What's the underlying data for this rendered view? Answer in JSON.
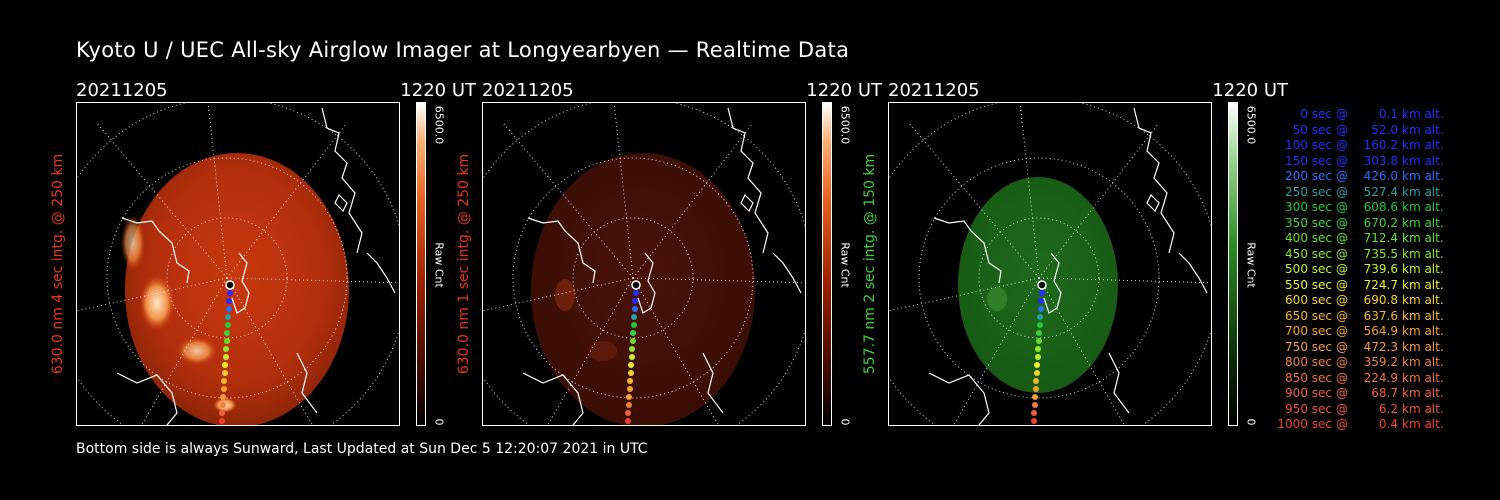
{
  "header": {
    "title": "Kyoto U / UEC All-sky Airglow Imager at Longyearbyen — Realtime Data"
  },
  "footer": {
    "text": "Bottom side is always Sunward, Last Updated at Sun Dec  5 12:20:07 2021 in UTC"
  },
  "colors": {
    "red_channel": "#d83a18",
    "green_channel": "#3bd13b",
    "background": "#000000"
  },
  "panels": [
    {
      "date": "20211205",
      "time": "1220 UT",
      "ylabel": "630.0 nm 4 sec intg. @ 250 km",
      "label_color": "#e8331c",
      "cbar_max": "6500.0",
      "cbar_min": "0",
      "cbar_unit": "Raw Cnt",
      "image_brightness": "bright red"
    },
    {
      "date": "20211205",
      "time": "1220 UT",
      "ylabel": "630.0 nm 1 sec intg. @ 250 km",
      "label_color": "#e8331c",
      "cbar_max": "6500.0",
      "cbar_min": "0",
      "cbar_unit": "Raw Cnt",
      "image_brightness": "dim red"
    },
    {
      "date": "20211205",
      "time": "1220 UT",
      "ylabel": "557.7 nm 2 sec intg. @ 150 km",
      "label_color": "#3bd13b",
      "cbar_max": "6500.0",
      "cbar_min": "0",
      "cbar_unit": "Raw Cnt",
      "image_brightness": "green"
    }
  ],
  "legend": [
    {
      "time": "0 sec",
      "alt": "0.1",
      "unit": "km alt.",
      "color": "#2a2aff"
    },
    {
      "time": "50 sec",
      "alt": "52.0",
      "unit": "km alt.",
      "color": "#2a2aff"
    },
    {
      "time": "100 sec",
      "alt": "160.2",
      "unit": "km alt.",
      "color": "#2a2aff"
    },
    {
      "time": "150 sec",
      "alt": "303.8",
      "unit": "km alt.",
      "color": "#2a2aff"
    },
    {
      "time": "200 sec",
      "alt": "426.0",
      "unit": "km alt.",
      "color": "#2a6cff"
    },
    {
      "time": "250 sec",
      "alt": "527.4",
      "unit": "km alt.",
      "color": "#27a0a0"
    },
    {
      "time": "300 sec",
      "alt": "608.6",
      "unit": "km alt.",
      "color": "#1fc83f"
    },
    {
      "time": "350 sec",
      "alt": "670.2",
      "unit": "km alt.",
      "color": "#3cd23c"
    },
    {
      "time": "400 sec",
      "alt": "712.4",
      "unit": "km alt.",
      "color": "#66e02a"
    },
    {
      "time": "450 sec",
      "alt": "735.5",
      "unit": "km alt.",
      "color": "#8ee82a"
    },
    {
      "time": "500 sec",
      "alt": "739.6",
      "unit": "km alt.",
      "color": "#c8f02a"
    },
    {
      "time": "550 sec",
      "alt": "724.7",
      "unit": "km alt.",
      "color": "#f0f02a"
    },
    {
      "time": "600 sec",
      "alt": "690.8",
      "unit": "km alt.",
      "color": "#f5d22a"
    },
    {
      "time": "650 sec",
      "alt": "637.6",
      "unit": "km alt.",
      "color": "#f5b82a"
    },
    {
      "time": "700 sec",
      "alt": "564.9",
      "unit": "km alt.",
      "color": "#f5a22a"
    },
    {
      "time": "750 sec",
      "alt": "472.3",
      "unit": "km alt.",
      "color": "#f59a40"
    },
    {
      "time": "800 sec",
      "alt": "359.2",
      "unit": "km alt.",
      "color": "#f08040"
    },
    {
      "time": "850 sec",
      "alt": "224.9",
      "unit": "km alt.",
      "color": "#f07040"
    },
    {
      "time": "900 sec",
      "alt": "68.7",
      "unit": "km alt.",
      "color": "#f06040"
    },
    {
      "time": "950 sec",
      "alt": "6.2",
      "unit": "km alt.",
      "color": "#f05040"
    },
    {
      "time": "1000 sec",
      "alt": "0.4",
      "unit": "km alt.",
      "color": "#f04030"
    }
  ]
}
